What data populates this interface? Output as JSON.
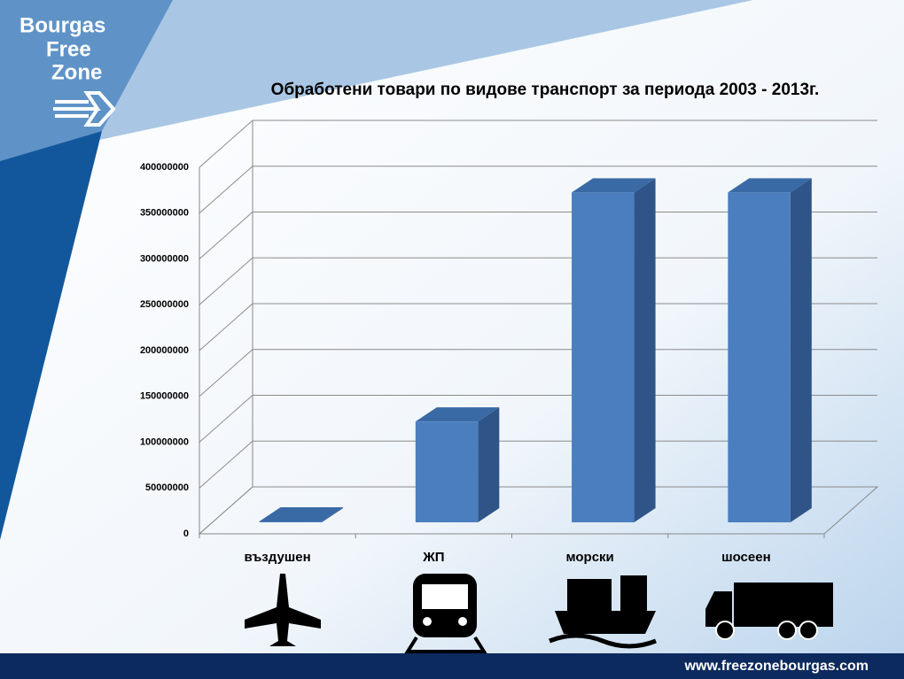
{
  "chart_data": {
    "type": "bar3d",
    "title": "Обработени товари по видове транспорт за периода 2003 - 2013г.",
    "categories": [
      "въздушен",
      "ЖП",
      "морски",
      "шосеен"
    ],
    "values": [
      1000000,
      110000000,
      360000000,
      360000000
    ],
    "color": "#4a7ebf",
    "ylim": [
      0,
      400000000
    ],
    "yticks": [
      0,
      50000000,
      100000000,
      150000000,
      200000000,
      250000000,
      300000000,
      350000000,
      400000000
    ],
    "grid": true
  },
  "logo": [
    "Bourgas",
    "Free",
    "Zone"
  ],
  "footer": "www.freezonebourgas.com"
}
